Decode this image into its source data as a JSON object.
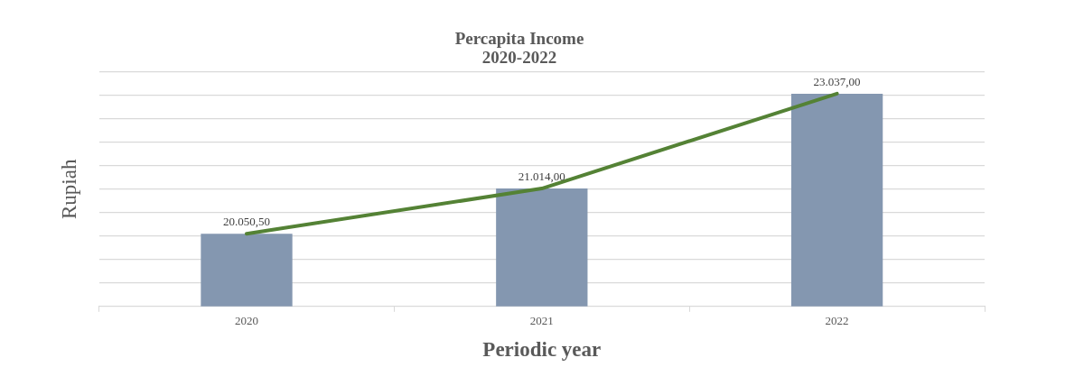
{
  "chart_data": {
    "type": "bar",
    "title": "Percapita Income\n2020-2022",
    "xlabel": "Periodic year",
    "ylabel": "Rupiah",
    "categories": [
      "2020",
      "2021",
      "2022"
    ],
    "series": [
      {
        "color": "#8497b0",
        "values": [
          20050.5,
          21014,
          23037
        ],
        "value_labels": [
          "20.050,50",
          "21.014,00",
          "23.037,00"
        ]
      },
      {
        "type": "line",
        "color": "#548235",
        "values": [
          20050.5,
          21014,
          23037
        ]
      }
    ],
    "ylim": [
      18500,
      23500
    ],
    "yticks": [
      {
        "value": 18500,
        "label": null
      },
      {
        "value": 19000,
        "label": null
      },
      {
        "value": 19500,
        "label": null
      },
      {
        "value": 20000,
        "label": null
      },
      {
        "value": 20500,
        "label": null
      },
      {
        "value": 21000,
        "label": null
      },
      {
        "value": 21500,
        "label": null
      },
      {
        "value": 22000,
        "label": null
      },
      {
        "value": 22500,
        "label": null
      },
      {
        "value": 23000,
        "label": null
      },
      {
        "value": 23500,
        "label": null
      }
    ],
    "grid": "y",
    "legend": false,
    "marker": "none",
    "line_style": "solid"
  }
}
